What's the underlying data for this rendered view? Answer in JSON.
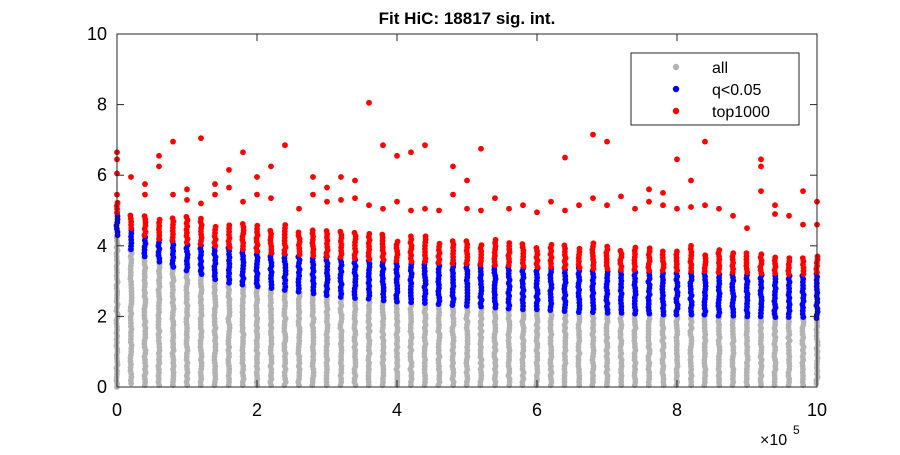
{
  "chart_data": {
    "type": "scatter",
    "title": "Fit HiC: 18817 sig. int.",
    "xlabel": "",
    "ylabel": "",
    "x_multiplier_label": {
      "base": "×10",
      "exponent": "5"
    },
    "xlim": [
      0,
      10
    ],
    "ylim": [
      0,
      10
    ],
    "xticks": [
      0,
      2,
      4,
      6,
      8,
      10
    ],
    "yticks": [
      0,
      2,
      4,
      6,
      8,
      10
    ],
    "grid": false,
    "legend_position": "top-right",
    "x_distances": [
      0,
      0.2,
      0.4,
      0.6,
      0.8,
      1.0,
      1.2,
      1.4,
      1.6,
      1.8,
      2.0,
      2.2,
      2.4,
      2.6,
      2.8,
      3.0,
      3.2,
      3.4,
      3.6,
      3.8,
      4.0,
      4.2,
      4.4,
      4.6,
      4.8,
      5.0,
      5.2,
      5.4,
      5.6,
      5.8,
      6.0,
      6.2,
      6.4,
      6.6,
      6.8,
      7.0,
      7.2,
      7.4,
      7.6,
      7.8,
      8.0,
      8.2,
      8.4,
      8.6,
      8.8,
      9.0,
      9.2,
      9.4,
      9.6,
      9.8,
      10.0
    ],
    "series": [
      {
        "name": "all",
        "color": "#b3b3b3",
        "min_per_x": [
          0,
          0.1,
          0.05,
          0.05,
          0.05,
          0.05,
          0.05,
          0.05,
          0.05,
          0.05,
          0.05,
          0.05,
          0.05,
          0.05,
          0.05,
          0.05,
          0.05,
          0.05,
          0.05,
          0.05,
          0.05,
          0.05,
          0.05,
          0.05,
          0.05,
          0.05,
          0.05,
          0.05,
          0.05,
          0.05,
          0.05,
          0.05,
          0.05,
          0.05,
          0.05,
          0.05,
          0.05,
          0.05,
          0.05,
          0.05,
          0.05,
          0.05,
          0.05,
          0.05,
          0.05,
          0.05,
          0.05,
          0.05,
          0.05,
          0.05,
          0.1
        ],
        "max_per_x": [
          4.3,
          3.9,
          3.7,
          3.55,
          3.4,
          3.3,
          3.2,
          3.05,
          2.95,
          2.9,
          2.85,
          2.8,
          2.75,
          2.7,
          2.65,
          2.6,
          2.55,
          2.52,
          2.5,
          2.45,
          2.42,
          2.4,
          2.38,
          2.35,
          2.32,
          2.3,
          2.28,
          2.25,
          2.22,
          2.2,
          2.2,
          2.18,
          2.15,
          2.12,
          2.12,
          2.1,
          2.1,
          2.08,
          2.08,
          2.05,
          2.05,
          2.05,
          2.05,
          2.02,
          2.02,
          2.0,
          2.0,
          1.98,
          1.98,
          1.98,
          1.95
        ]
      },
      {
        "name": "q<0.05",
        "color": "#0000ff",
        "min_per_x": [
          4.3,
          3.9,
          3.7,
          3.55,
          3.4,
          3.3,
          3.2,
          3.05,
          2.95,
          2.9,
          2.85,
          2.8,
          2.75,
          2.7,
          2.65,
          2.6,
          2.55,
          2.52,
          2.5,
          2.45,
          2.42,
          2.4,
          2.38,
          2.35,
          2.32,
          2.3,
          2.28,
          2.25,
          2.22,
          2.2,
          2.2,
          2.18,
          2.15,
          2.12,
          2.12,
          2.1,
          2.1,
          2.08,
          2.08,
          2.05,
          2.05,
          2.05,
          2.05,
          2.02,
          2.02,
          2.0,
          2.0,
          1.98,
          1.98,
          1.98,
          1.95
        ],
        "max_per_x": [
          4.95,
          4.5,
          4.3,
          4.2,
          4.15,
          4.1,
          4.05,
          4.0,
          3.95,
          3.9,
          3.85,
          3.8,
          3.78,
          3.75,
          3.72,
          3.7,
          3.68,
          3.65,
          3.62,
          3.6,
          3.58,
          3.55,
          3.55,
          3.52,
          3.5,
          3.5,
          3.48,
          3.45,
          3.45,
          3.42,
          3.4,
          3.4,
          3.38,
          3.38,
          3.35,
          3.35,
          3.32,
          3.32,
          3.3,
          3.3,
          3.3,
          3.28,
          3.28,
          3.25,
          3.25,
          3.25,
          3.22,
          3.22,
          3.2,
          3.2,
          3.25
        ]
      },
      {
        "name": "top1000",
        "color": "#ff0000",
        "band_min_per_x": [
          4.95,
          4.5,
          4.3,
          4.2,
          4.15,
          4.1,
          4.05,
          4.0,
          3.95,
          3.9,
          3.85,
          3.8,
          3.78,
          3.75,
          3.72,
          3.7,
          3.68,
          3.65,
          3.62,
          3.6,
          3.58,
          3.55,
          3.55,
          3.52,
          3.5,
          3.5,
          3.48,
          3.45,
          3.45,
          3.42,
          3.4,
          3.4,
          3.38,
          3.38,
          3.35,
          3.35,
          3.32,
          3.32,
          3.3,
          3.3,
          3.3,
          3.28,
          3.28,
          3.25,
          3.25,
          3.25,
          3.22,
          3.22,
          3.2,
          3.2,
          3.25
        ],
        "band_max_per_x": [
          5.3,
          4.9,
          4.9,
          4.8,
          4.8,
          4.9,
          4.8,
          4.6,
          4.6,
          4.65,
          4.6,
          4.5,
          4.6,
          4.4,
          4.5,
          4.5,
          4.4,
          4.4,
          4.4,
          4.4,
          4.2,
          4.3,
          4.3,
          4.1,
          4.2,
          4.2,
          4.1,
          4.2,
          4.1,
          4.1,
          4.0,
          4.1,
          4.05,
          4.0,
          4.1,
          4.0,
          3.9,
          4.0,
          4.0,
          3.9,
          3.9,
          4.0,
          3.8,
          3.9,
          3.8,
          3.8,
          3.8,
          3.7,
          3.7,
          3.7,
          3.7
        ],
        "outliers": [
          [
            0,
            6.65
          ],
          [
            0,
            6.45
          ],
          [
            0,
            6.05
          ],
          [
            0,
            5.45
          ],
          [
            0.2,
            5.95
          ],
          [
            0.4,
            5.75
          ],
          [
            0.4,
            5.45
          ],
          [
            0.6,
            6.55
          ],
          [
            0.6,
            6.25
          ],
          [
            0.8,
            6.95
          ],
          [
            0.8,
            5.45
          ],
          [
            1.0,
            5.6
          ],
          [
            1.0,
            5.3
          ],
          [
            1.2,
            7.05
          ],
          [
            1.2,
            5.2
          ],
          [
            1.4,
            5.75
          ],
          [
            1.4,
            5.45
          ],
          [
            1.6,
            6.15
          ],
          [
            1.6,
            5.65
          ],
          [
            1.8,
            6.65
          ],
          [
            1.8,
            5.25
          ],
          [
            2.0,
            5.95
          ],
          [
            2.0,
            5.45
          ],
          [
            2.2,
            6.25
          ],
          [
            2.2,
            5.35
          ],
          [
            2.4,
            6.85
          ],
          [
            2.6,
            5.05
          ],
          [
            2.8,
            5.95
          ],
          [
            2.8,
            5.45
          ],
          [
            3.0,
            5.65
          ],
          [
            3.0,
            5.25
          ],
          [
            3.2,
            5.95
          ],
          [
            3.2,
            5.3
          ],
          [
            3.4,
            5.85
          ],
          [
            3.4,
            5.35
          ],
          [
            3.6,
            8.05
          ],
          [
            3.6,
            5.15
          ],
          [
            3.8,
            6.85
          ],
          [
            3.8,
            5.05
          ],
          [
            4.0,
            6.55
          ],
          [
            4.0,
            5.25
          ],
          [
            4.2,
            6.65
          ],
          [
            4.2,
            5.0
          ],
          [
            4.4,
            6.85
          ],
          [
            4.4,
            5.05
          ],
          [
            4.6,
            5.0
          ],
          [
            4.8,
            6.25
          ],
          [
            4.8,
            5.45
          ],
          [
            5.0,
            5.85
          ],
          [
            5.0,
            5.05
          ],
          [
            5.2,
            6.75
          ],
          [
            5.2,
            5.0
          ],
          [
            5.4,
            5.35
          ],
          [
            5.6,
            5.05
          ],
          [
            5.8,
            5.15
          ],
          [
            6.0,
            4.95
          ],
          [
            6.2,
            5.25
          ],
          [
            6.4,
            6.5
          ],
          [
            6.4,
            5.0
          ],
          [
            6.6,
            5.15
          ],
          [
            6.8,
            7.15
          ],
          [
            6.8,
            5.35
          ],
          [
            7.0,
            6.95
          ],
          [
            7.0,
            5.15
          ],
          [
            7.2,
            5.4
          ],
          [
            7.4,
            5.05
          ],
          [
            7.6,
            5.6
          ],
          [
            7.6,
            5.25
          ],
          [
            7.8,
            5.5
          ],
          [
            7.8,
            5.15
          ],
          [
            8.0,
            6.45
          ],
          [
            8.0,
            5.05
          ],
          [
            8.2,
            5.85
          ],
          [
            8.2,
            5.1
          ],
          [
            8.4,
            6.95
          ],
          [
            8.4,
            5.15
          ],
          [
            8.6,
            5.05
          ],
          [
            8.8,
            4.85
          ],
          [
            9.0,
            4.5
          ],
          [
            9.2,
            6.45
          ],
          [
            9.2,
            6.25
          ],
          [
            9.2,
            5.55
          ],
          [
            9.4,
            5.15
          ],
          [
            9.4,
            4.9
          ],
          [
            9.6,
            4.85
          ],
          [
            9.8,
            5.55
          ],
          [
            9.8,
            4.6
          ],
          [
            10.0,
            5.25
          ],
          [
            10.0,
            4.6
          ]
        ]
      }
    ]
  }
}
